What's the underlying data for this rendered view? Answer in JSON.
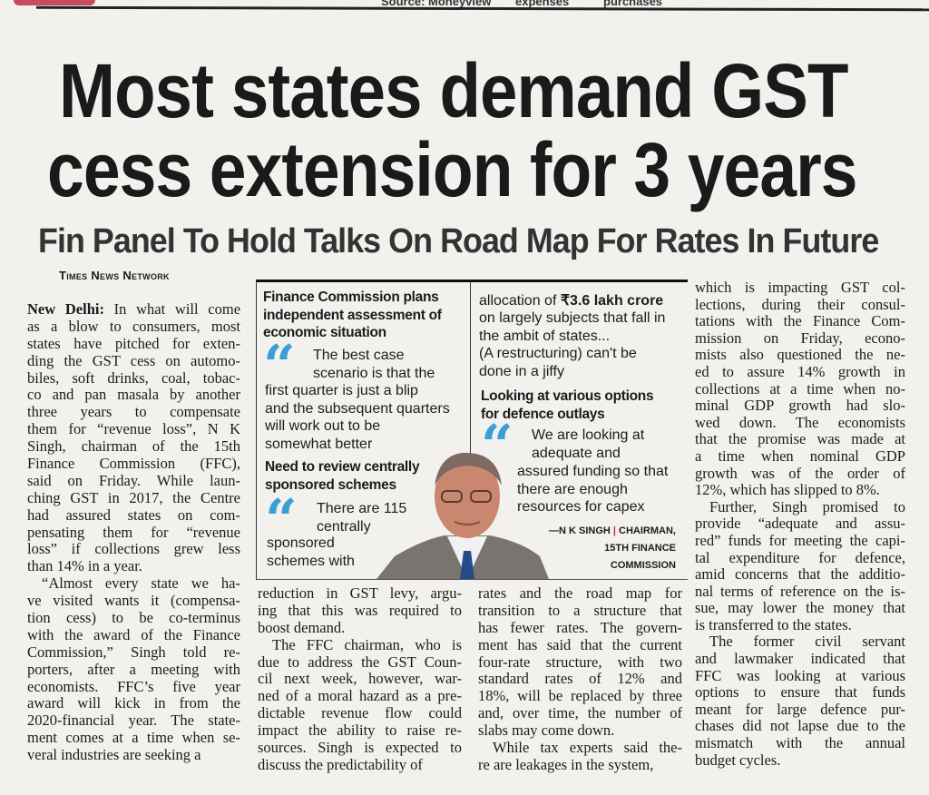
{
  "top_fragments": {
    "source": "Source: Moneyview",
    "expenses": "expenses",
    "purchases": "purchases"
  },
  "headline": {
    "line1": "Most states demand GST",
    "line2": "cess extension for 3 years"
  },
  "subheadline": "Fin Panel To Hold Talks On Road Map For Rates In Future",
  "byline": "Times News Network",
  "dateline": "New Delhi:",
  "columns": {
    "col1": [
      [
        "In what will come",
        "as a blow to consumers, most",
        "states have pitched for exten-",
        "ding the GST cess on automo-",
        "biles, soft drinks, coal, tobac-",
        "co and pan masala by another",
        "three years to compensate",
        "them for “revenue loss”, N K",
        "Singh, chairman of the 15th",
        "Finance Commission (FFC),",
        "said on Friday. While laun-",
        "ching GST in 2017, the Centre",
        "had assured states on com-",
        "pensating them for “revenue",
        "loss” if collections grew less",
        "than 14% in a year."
      ],
      [
        "“Almost every state we ha-",
        "ve visited wants it (compensa-",
        "tion cess) to be co-terminus",
        "with the award of the Finance",
        "Commission,” Singh told re-",
        "porters, after a meeting with",
        "economists. FFC’s five year",
        "award will kick in from the",
        "2020-financial year. The state-",
        "ment comes at a time when se-",
        "veral industries are seeking a"
      ]
    ],
    "col2": [
      [
        "reduction in GST levy, argu-",
        "ing that this was required to",
        "boost demand."
      ],
      [
        "The FFC chairman, who is",
        "due to address the GST Coun-",
        "cil next week, however, war-",
        "ned of a moral hazard as a pre-",
        "dictable revenue flow could",
        "impact the ability to raise re-",
        "sources. Singh is expected to",
        "discuss the predictability of"
      ]
    ],
    "col3": [
      [
        "rates and the road map for",
        "transition to a structure that",
        "has fewer rates. The govern-",
        "ment has said that the current",
        "four-rate structure, with two",
        "standard rates of 12% and",
        "18%, will be replaced by three",
        "and, over time, the number of",
        "slabs may come down."
      ],
      [
        "While tax experts said the-",
        "re are leakages in the system,"
      ]
    ],
    "col4": [
      [
        "which is impacting GST col-",
        "lections, during their consul-",
        "tations with the Finance Com-",
        "mission on Friday, econo-",
        "mists also questioned the ne-",
        "ed to assure 14% growth in",
        "collections at a time when no-",
        "minal GDP growth had slo-",
        "wed down. The economists",
        "that the promise was made at",
        "a time when nominal GDP",
        "growth was of the order of",
        "12%, which has slipped to 8%."
      ],
      [
        "Further, Singh promised to",
        "provide “adequate and assu-",
        "red” funds for meeting the capi-",
        "tal expenditure for defence,",
        "amid concerns that the additio-",
        "nal terms of reference on the is-",
        "sue, may lower the money that",
        "is transferred to the states."
      ],
      [
        "The former civil servant",
        "and lawmaker indicated that",
        "FFC was looking at various",
        "options to ensure that funds",
        "meant for large defence pur-",
        "chases did not lapse due to the",
        "mismatch with the annual",
        "budget cycles."
      ]
    ]
  },
  "box": {
    "h1": [
      "Finance Commission plans",
      "independent assessment of",
      "economic situation"
    ],
    "q1a": [
      "The best case",
      "scenario is that the"
    ],
    "q1b": [
      "first quarter is just a blip",
      "and the subsequent quarters",
      "will work out to be",
      "somewhat better"
    ],
    "h2": [
      "Need to review centrally",
      "sponsored schemes"
    ],
    "q2a": [
      "There are 115",
      "centrally"
    ],
    "q2b": [
      "sponsored",
      "schemes with"
    ],
    "r1_pre": "allocation of ",
    "r1_bold": "₹3.6 lakh crore",
    "r1": [
      "on largely subjects that fall in",
      "the ambit of states...",
      "(A restructuring) can't be",
      "done in a jiffy"
    ],
    "h3": [
      "Looking at various options",
      "for defence outlays"
    ],
    "q3a": [
      "We are looking at",
      "adequate and"
    ],
    "q3b": [
      "assured funding so that",
      "there are enough",
      "resources for capex"
    ],
    "attribution": {
      "name": "—N K SINGH",
      "role1": "CHAIRMAN,",
      "role2": "15TH FINANCE",
      "role3": "COMMISSION"
    },
    "quote_mark": "“"
  },
  "colors": {
    "quote": "#3a9fd6",
    "paper": "#f3f1ee",
    "ink": "#1d1b1c"
  }
}
